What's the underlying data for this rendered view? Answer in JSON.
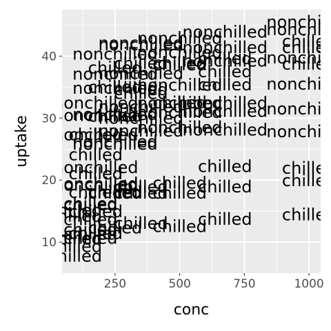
{
  "chart_data": {
    "type": "scatter",
    "geom": "text",
    "xlabel": "conc",
    "ylabel": "uptake",
    "xlim": [
      45,
      1045
    ],
    "ylim": [
      5,
      47.5
    ],
    "xticks": [
      250,
      500,
      750,
      1000
    ],
    "yticks": [
      10,
      20,
      30,
      40
    ],
    "grid": true,
    "panel_background": "#EBEBEB",
    "grid_color": "#FFFFFF",
    "text_color": "#000000",
    "points": [
      {
        "x": 95,
        "y": 16.0,
        "label": "nonchilled"
      },
      {
        "x": 175,
        "y": 30.4,
        "label": "nonchilled"
      },
      {
        "x": 250,
        "y": 34.8,
        "label": "nonchilled"
      },
      {
        "x": 350,
        "y": 37.2,
        "label": "nonchilled"
      },
      {
        "x": 500,
        "y": 35.3,
        "label": "nonchilled"
      },
      {
        "x": 675,
        "y": 39.2,
        "label": "nonchilled"
      },
      {
        "x": 1000,
        "y": 39.7,
        "label": "nonchilled"
      },
      {
        "x": 95,
        "y": 13.6,
        "label": "nonchilled"
      },
      {
        "x": 175,
        "y": 27.3,
        "label": "nonchilled"
      },
      {
        "x": 250,
        "y": 37.1,
        "label": "nonchilled"
      },
      {
        "x": 350,
        "y": 41.8,
        "label": "nonchilled"
      },
      {
        "x": 500,
        "y": 40.6,
        "label": "nonchilled"
      },
      {
        "x": 675,
        "y": 41.4,
        "label": "nonchilled"
      },
      {
        "x": 1000,
        "y": 44.3,
        "label": "nonchilled"
      },
      {
        "x": 95,
        "y": 16.2,
        "label": "nonchilled"
      },
      {
        "x": 175,
        "y": 32.4,
        "label": "nonchilled"
      },
      {
        "x": 250,
        "y": 40.3,
        "label": "nonchilled"
      },
      {
        "x": 350,
        "y": 42.1,
        "label": "nonchilled"
      },
      {
        "x": 500,
        "y": 42.9,
        "label": "nonchilled"
      },
      {
        "x": 675,
        "y": 43.9,
        "label": "nonchilled"
      },
      {
        "x": 1000,
        "y": 45.5,
        "label": "nonchilled"
      },
      {
        "x": 95,
        "y": 10.6,
        "label": "nonchilled"
      },
      {
        "x": 175,
        "y": 19.2,
        "label": "nonchilled"
      },
      {
        "x": 250,
        "y": 26.2,
        "label": "nonchilled"
      },
      {
        "x": 350,
        "y": 30.0,
        "label": "nonchilled"
      },
      {
        "x": 500,
        "y": 30.9,
        "label": "nonchilled"
      },
      {
        "x": 675,
        "y": 32.4,
        "label": "nonchilled"
      },
      {
        "x": 1000,
        "y": 35.5,
        "label": "nonchilled"
      },
      {
        "x": 95,
        "y": 12.0,
        "label": "nonchilled"
      },
      {
        "x": 175,
        "y": 22.0,
        "label": "nonchilled"
      },
      {
        "x": 250,
        "y": 30.6,
        "label": "nonchilled"
      },
      {
        "x": 350,
        "y": 31.8,
        "label": "nonchilled"
      },
      {
        "x": 500,
        "y": 32.4,
        "label": "nonchilled"
      },
      {
        "x": 675,
        "y": 31.1,
        "label": "nonchilled"
      },
      {
        "x": 1000,
        "y": 31.5,
        "label": "nonchilled"
      },
      {
        "x": 95,
        "y": 11.3,
        "label": "nonchilled"
      },
      {
        "x": 175,
        "y": 19.4,
        "label": "nonchilled"
      },
      {
        "x": 250,
        "y": 25.8,
        "label": "nonchilled"
      },
      {
        "x": 350,
        "y": 27.9,
        "label": "nonchilled"
      },
      {
        "x": 500,
        "y": 28.5,
        "label": "nonchilled"
      },
      {
        "x": 675,
        "y": 28.1,
        "label": "nonchilled"
      },
      {
        "x": 1000,
        "y": 27.8,
        "label": "nonchilled"
      },
      {
        "x": 95,
        "y": 10.5,
        "label": "chilled"
      },
      {
        "x": 175,
        "y": 14.9,
        "label": "chilled"
      },
      {
        "x": 250,
        "y": 18.1,
        "label": "chilled"
      },
      {
        "x": 350,
        "y": 18.9,
        "label": "chilled"
      },
      {
        "x": 500,
        "y": 19.5,
        "label": "chilled"
      },
      {
        "x": 675,
        "y": 22.2,
        "label": "chilled"
      },
      {
        "x": 1000,
        "y": 21.9,
        "label": "chilled"
      },
      {
        "x": 95,
        "y": 7.7,
        "label": "chilled"
      },
      {
        "x": 175,
        "y": 11.4,
        "label": "chilled"
      },
      {
        "x": 250,
        "y": 12.3,
        "label": "chilled"
      },
      {
        "x": 350,
        "y": 13.0,
        "label": "chilled"
      },
      {
        "x": 500,
        "y": 12.5,
        "label": "chilled"
      },
      {
        "x": 675,
        "y": 13.7,
        "label": "chilled"
      },
      {
        "x": 1000,
        "y": 14.4,
        "label": "chilled"
      },
      {
        "x": 95,
        "y": 14.2,
        "label": "chilled"
      },
      {
        "x": 175,
        "y": 24.1,
        "label": "chilled"
      },
      {
        "x": 250,
        "y": 30.3,
        "label": "chilled"
      },
      {
        "x": 350,
        "y": 34.6,
        "label": "chilled"
      },
      {
        "x": 500,
        "y": 32.5,
        "label": "chilled"
      },
      {
        "x": 675,
        "y": 35.4,
        "label": "chilled"
      },
      {
        "x": 1000,
        "y": 38.7,
        "label": "chilled"
      },
      {
        "x": 95,
        "y": 9.3,
        "label": "chilled"
      },
      {
        "x": 175,
        "y": 27.3,
        "label": "chilled"
      },
      {
        "x": 250,
        "y": 35.0,
        "label": "chilled"
      },
      {
        "x": 350,
        "y": 38.8,
        "label": "chilled"
      },
      {
        "x": 500,
        "y": 38.6,
        "label": "chilled"
      },
      {
        "x": 675,
        "y": 37.5,
        "label": "chilled"
      },
      {
        "x": 1000,
        "y": 42.4,
        "label": "chilled"
      },
      {
        "x": 95,
        "y": 15.1,
        "label": "chilled"
      },
      {
        "x": 175,
        "y": 21.0,
        "label": "chilled"
      },
      {
        "x": 250,
        "y": 38.1,
        "label": "chilled"
      },
      {
        "x": 350,
        "y": 34.0,
        "label": "chilled"
      },
      {
        "x": 500,
        "y": 38.9,
        "label": "chilled"
      },
      {
        "x": 675,
        "y": 39.6,
        "label": "chilled"
      },
      {
        "x": 1000,
        "y": 41.4,
        "label": "chilled"
      },
      {
        "x": 95,
        "y": 10.6,
        "label": "chilled"
      },
      {
        "x": 175,
        "y": 18.0,
        "label": "chilled"
      },
      {
        "x": 250,
        "y": 17.9,
        "label": "chilled"
      },
      {
        "x": 350,
        "y": 17.9,
        "label": "chilled"
      },
      {
        "x": 500,
        "y": 17.9,
        "label": "chilled"
      },
      {
        "x": 675,
        "y": 18.9,
        "label": "chilled"
      },
      {
        "x": 1000,
        "y": 19.9,
        "label": "chilled"
      }
    ]
  }
}
